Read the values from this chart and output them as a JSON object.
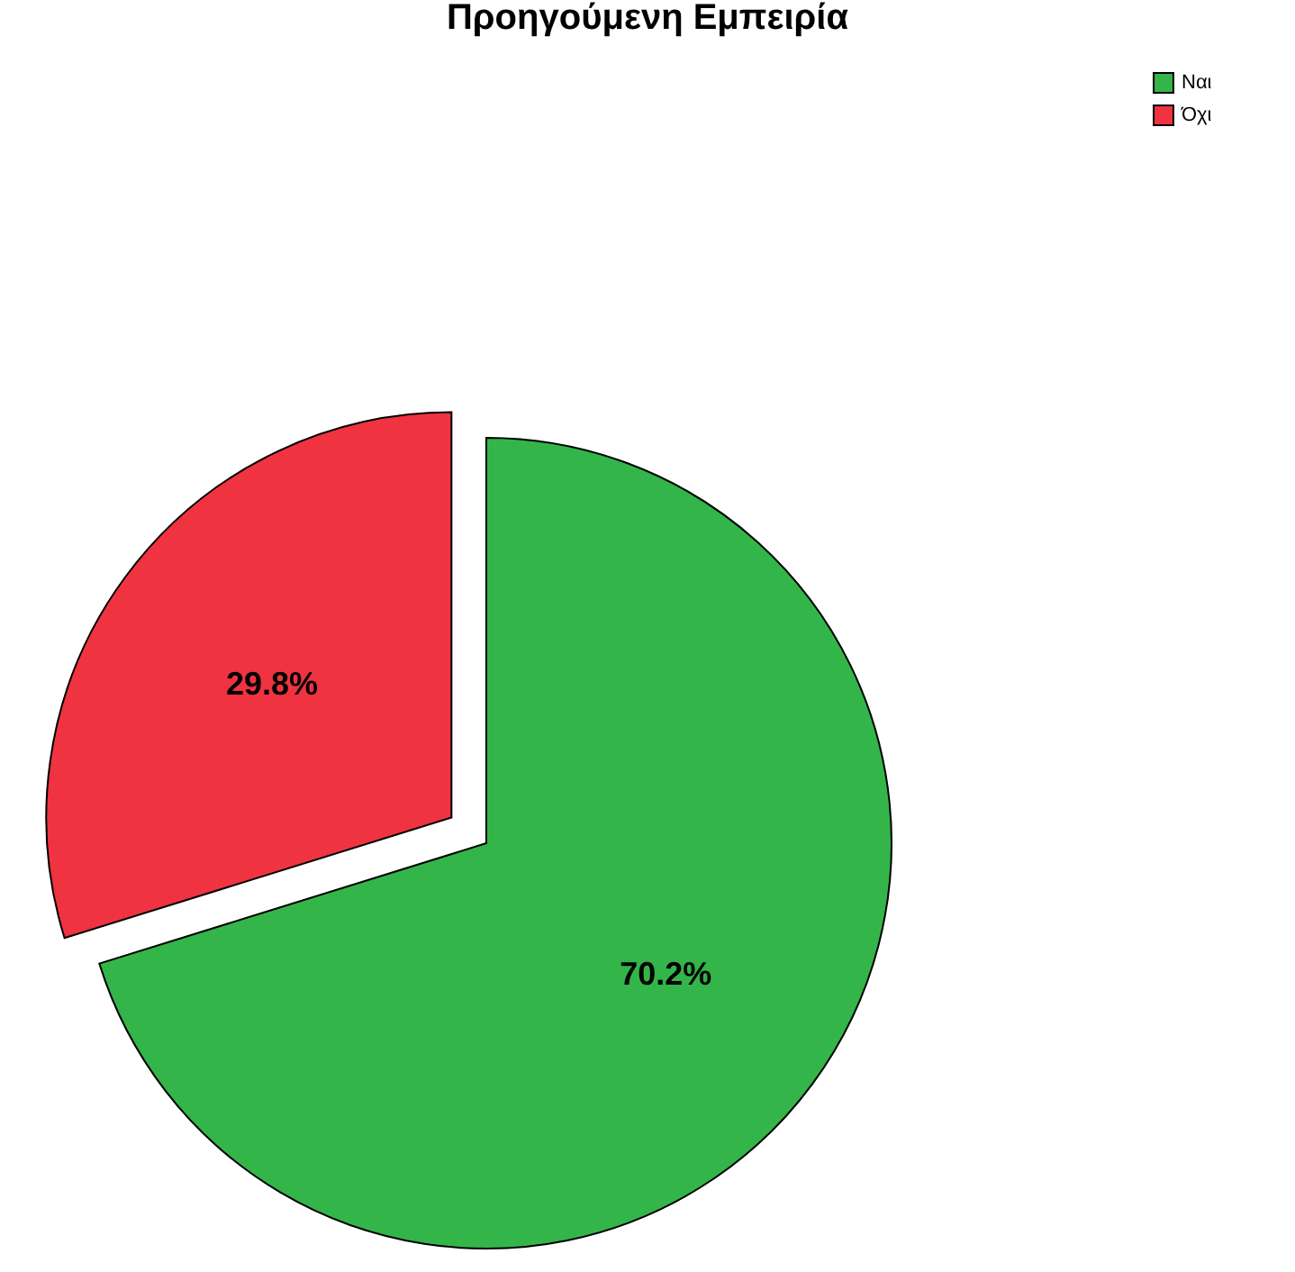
{
  "chart_data": {
    "type": "pie",
    "title": "Προηγούμενη Εμπειρία",
    "categories": [
      "Ναι",
      "Όχι"
    ],
    "values": [
      70.2,
      29.8
    ],
    "colors": [
      "#33b54a",
      "#ef3340"
    ],
    "value_labels": [
      "70.2%",
      "29.8%"
    ],
    "legend": "top right"
  }
}
